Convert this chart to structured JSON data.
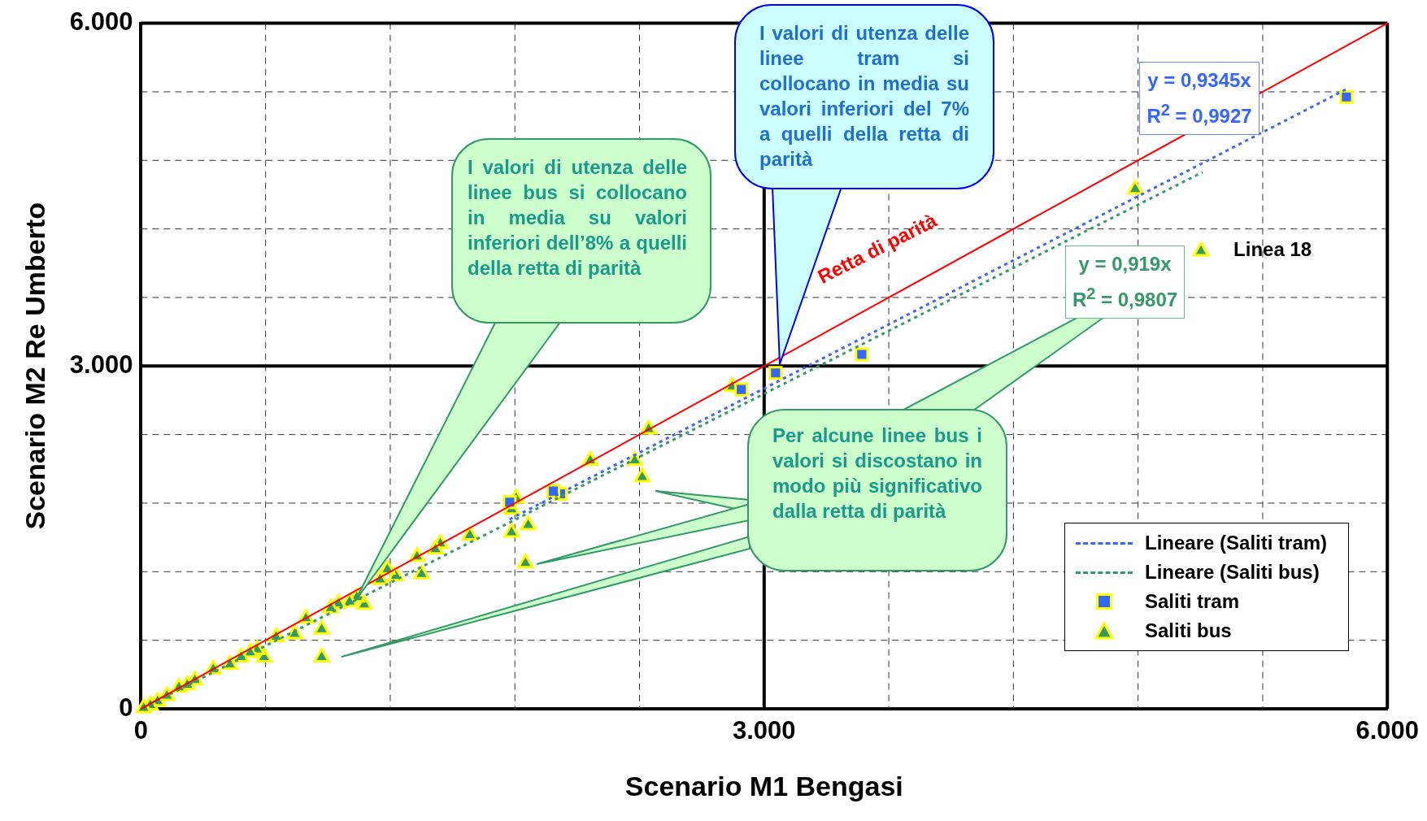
{
  "chart_data": {
    "type": "scatter",
    "xlabel": "Scenario M1 Bengasi",
    "ylabel": "Scenario M2 Re Umberto",
    "xlim": [
      0,
      6000
    ],
    "ylim": [
      0,
      6000
    ],
    "xticks": [
      0,
      {
        "value": 600,
        "label": null
      },
      {
        "value": 1200,
        "label": null
      },
      {
        "value": 1800,
        "label": null
      },
      {
        "value": 2400,
        "label": null
      },
      {
        "value": 3000,
        "label": "3.000"
      },
      {
        "value": 3600,
        "label": null
      },
      {
        "value": 4200,
        "label": null
      },
      {
        "value": 4800,
        "label": null
      },
      {
        "value": 5400,
        "label": null
      },
      {
        "value": 6000,
        "label": "6.000"
      }
    ],
    "yticks": [
      0,
      {
        "value": 600,
        "label": null
      },
      {
        "value": 1200,
        "label": null
      },
      {
        "value": 1800,
        "label": null
      },
      {
        "value": 2400,
        "label": null
      },
      {
        "value": 3000,
        "label": "3.000"
      },
      {
        "value": 3600,
        "label": null
      },
      {
        "value": 4200,
        "label": null
      },
      {
        "value": 4800,
        "label": null
      },
      {
        "value": 5400,
        "label": null
      },
      {
        "value": 6000,
        "label": "6.000"
      }
    ],
    "grid": true,
    "legend": "bottom right",
    "series": [
      {
        "type": "line",
        "color": "#ff0000",
        "line_style": "solid",
        "marker": "none",
        "x": [
          0,
          6000
        ],
        "values": [
          0,
          6000
        ]
      },
      {
        "type": "line",
        "name": "Lineare (Saliti tram)",
        "color": "#3366ff",
        "line_style": "dotted",
        "marker": "none",
        "x": [
          1775,
          5803
        ],
        "values": [
          1659,
          5423
        ]
      },
      {
        "type": "line",
        "name": "Lineare (Saliti bus)",
        "color": "#339966",
        "line_style": "dotted",
        "marker": "none",
        "x": [
          13,
          5111
        ],
        "values": [
          12,
          4697
        ]
      },
      {
        "name": "Saliti tram",
        "color": "#3366ff",
        "marker": "square",
        "x": [
          5803,
          3470,
          3055,
          2890,
          2020,
          1985,
          1775
        ],
        "values": [
          5355,
          3102,
          2940,
          2795,
          1882,
          1906,
          1809
        ]
      },
      {
        "name": "Saliti bus",
        "color": "#339966",
        "marker": "triangle",
        "x": [
          4786,
          5103,
          2846,
          2444,
          2163,
          2377,
          2413,
          1806,
          1784,
          1864,
          1784,
          1583,
          1851,
          1441,
          1418,
          1351,
          1329,
          1227,
          1186,
          1151,
          1075,
          1039,
          1004,
          950,
          914,
          870,
          870,
          794,
          740,
          651,
          593,
          558,
          526,
          482,
          428,
          348,
          259,
          223,
          183,
          125,
          80,
          45,
          13
        ],
        "values": [
          4548,
          4006,
          2819,
          2447,
          2173,
          2173,
          2027,
          1842,
          1745,
          1607,
          1543,
          1519,
          1276,
          1446,
          1397,
          1179,
          1333,
          1163,
          1220,
          1131,
          913,
          977,
          937,
          921,
          880,
          695,
          452,
          792,
          654,
          630,
          452,
          517,
          493,
          452,
          388,
          347,
          250,
          210,
          186,
          113,
          65,
          32,
          8
        ]
      }
    ],
    "annotations": [
      "I valori di utenza delle linee bus si collocano in media su valori inferiori dell’8% a quelli della retta di parità",
      "I valori di utenza delle linee tram si collocano in media su valori inferiori del 7% a quelli della retta di parità",
      "Per alcune linee bus i valori si discostano in modo più significativo dalla retta di parità",
      "y = 0,9345x\nR$^{2}$ = 0,9927",
      "y = 0,919x\nR$^{2}$ = 0,9807",
      {
        "text": "Retta di parità",
        "x": 3700,
        "y": 3700
      },
      {
        "text": "Linea 18",
        "x": 5103,
        "y": 4006
      }
    ]
  }
}
